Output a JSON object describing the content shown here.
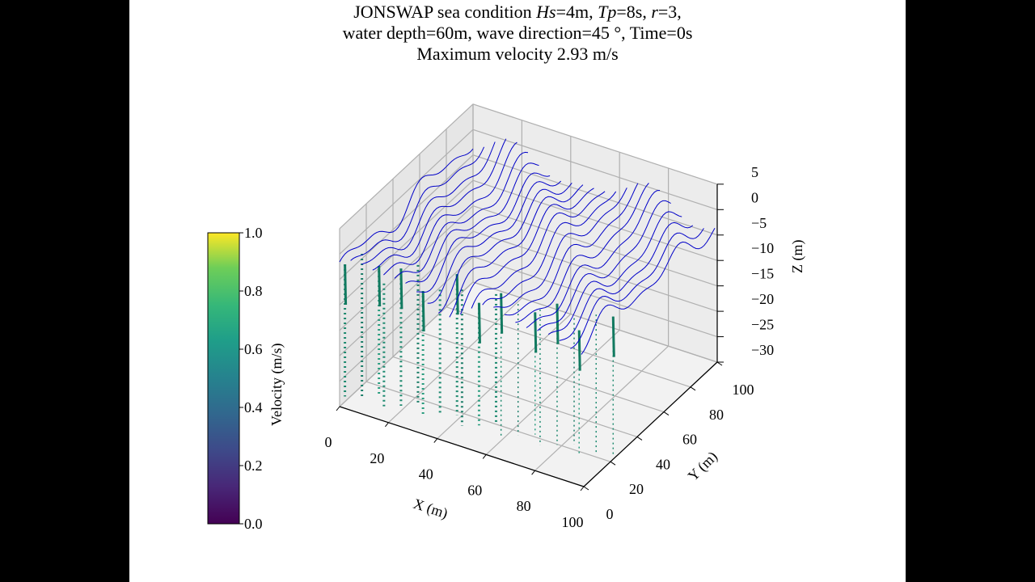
{
  "chart_data": {
    "type": "3d-line",
    "title": {
      "line1_prefix": "JONSWAP sea condition ",
      "hs_label": "Hs",
      "hs_value": "=4m, ",
      "tp_label": "Tp",
      "tp_value": "=8s, ",
      "r_label": "r",
      "r_value": "=3,",
      "line2": "water depth=60m, wave direction=45 °, Time=0s",
      "line3": "Maximum velocity 2.93 m/s"
    },
    "xlabel": "X (m)",
    "ylabel": "Y (m)",
    "zlabel": "Z (m)",
    "xlim": [
      0,
      100
    ],
    "ylim": [
      0,
      100
    ],
    "zlim": [
      -30,
      5
    ],
    "xticks": [
      "0",
      "20",
      "40",
      "60",
      "80",
      "100"
    ],
    "yticks": [
      "0",
      "20",
      "40",
      "60",
      "80",
      "100"
    ],
    "zticks": [
      "5",
      "0",
      "−5",
      "−10",
      "−15",
      "−20",
      "−25",
      "−30"
    ],
    "grid": true,
    "surface_color": "#0000c8",
    "colorbar": {
      "label": "Velocity (m/s)",
      "colormap": "viridis",
      "range": [
        0,
        1
      ],
      "ticks": [
        "1.0",
        "0.8",
        "0.6",
        "0.4",
        "0.2",
        "0.0"
      ]
    }
  }
}
